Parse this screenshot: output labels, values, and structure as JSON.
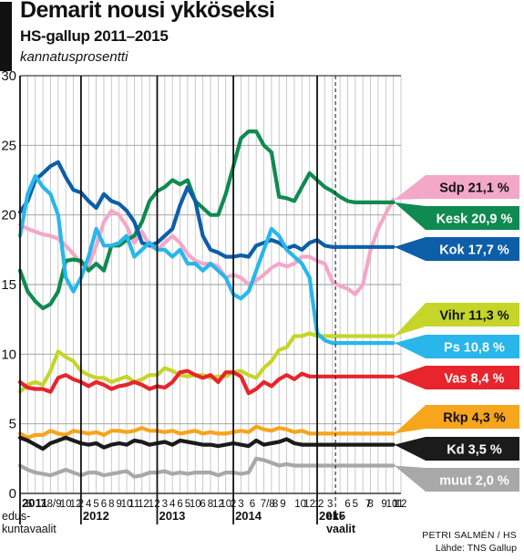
{
  "header": {
    "title": "Demarit nousi ykköseksi",
    "subtitle": "HS-gallup 2011–2015",
    "unit": "kannatusprosentti"
  },
  "footer": {
    "credit_author": "PETRI SALMÉN / HS",
    "credit_source": "Lähde: TNS Gallup"
  },
  "chart_data": {
    "type": "line",
    "title": "Demarit nousi ykköseksi",
    "subtitle": "HS-gallup 2011–2015",
    "ylabel": "kannatusprosentti",
    "ylim": [
      0,
      30
    ],
    "yticks": [
      0,
      5,
      10,
      15,
      20,
      25,
      30
    ],
    "grid": true,
    "legend_placement": "right",
    "xlim": [
      0,
      50
    ],
    "x": [
      0,
      1,
      2,
      3,
      4,
      5,
      6,
      7,
      8,
      9,
      10,
      11,
      12,
      13,
      14,
      15,
      16,
      17,
      18,
      19,
      20,
      21,
      22,
      23,
      24,
      25,
      26,
      27,
      28,
      29,
      30,
      31,
      32,
      33,
      34,
      35,
      36,
      37,
      38,
      39,
      40,
      41,
      42,
      43,
      44,
      45,
      46,
      47,
      48,
      49
    ],
    "year_marks": [
      {
        "x": 0,
        "label": "2011"
      },
      {
        "x": 8,
        "label": "2012"
      },
      {
        "x": 18,
        "label": "2013"
      },
      {
        "x": 28,
        "label": "2014"
      },
      {
        "x": 39,
        "label": "2015"
      }
    ],
    "event_marks": [
      {
        "x": 0,
        "label": "edus-\nkuntavaalit"
      },
      {
        "x": 41.4,
        "label": "ek-\nvaalit"
      }
    ],
    "x_tick_labels": [
      {
        "x": 1.2,
        "label": "6"
      },
      {
        "x": 3,
        "label": "7"
      },
      {
        "x": 4.5,
        "label": "8/9"
      },
      {
        "x": 6,
        "label": "10"
      },
      {
        "x": 7.3,
        "label": "12"
      },
      {
        "x": 8,
        "label": "2"
      },
      {
        "x": 9,
        "label": "4"
      },
      {
        "x": 10,
        "label": "5"
      },
      {
        "x": 11,
        "label": "6"
      },
      {
        "x": 12,
        "label": "8"
      },
      {
        "x": 13,
        "label": "9"
      },
      {
        "x": 14,
        "label": "10"
      },
      {
        "x": 15,
        "label": "11"
      },
      {
        "x": 16.2,
        "label": "12"
      },
      {
        "x": 17.2,
        "label": "1"
      },
      {
        "x": 18,
        "label": "2"
      },
      {
        "x": 19,
        "label": "3"
      },
      {
        "x": 20,
        "label": "4"
      },
      {
        "x": 21,
        "label": "6"
      },
      {
        "x": 22,
        "label": "5"
      },
      {
        "x": 23,
        "label": "10"
      },
      {
        "x": 24,
        "label": "6"
      },
      {
        "x": 25,
        "label": "8"
      },
      {
        "x": 26,
        "label": "12"
      },
      {
        "x": 27,
        "label": "10"
      },
      {
        "x": 28,
        "label": "2"
      },
      {
        "x": 29,
        "label": "3"
      },
      {
        "x": 30.5,
        "label": "6"
      },
      {
        "x": 32.5,
        "label": "7/8"
      },
      {
        "x": 33.5,
        "label": "8"
      },
      {
        "x": 34.5,
        "label": "9"
      },
      {
        "x": 36.8,
        "label": "10"
      },
      {
        "x": 38,
        "label": "12"
      },
      {
        "x": 39,
        "label": "1"
      },
      {
        "x": 39.5,
        "label": "2"
      },
      {
        "x": 40.7,
        "label": "3"
      },
      {
        "x": 43,
        "label": "6"
      },
      {
        "x": 44,
        "label": "5"
      },
      {
        "x": 45.7,
        "label": "7"
      },
      {
        "x": 46,
        "label": "8"
      },
      {
        "x": 47.8,
        "label": "9"
      },
      {
        "x": 48.8,
        "label": "10"
      },
      {
        "x": 49.6,
        "label": "11"
      },
      {
        "x": 50,
        "label": "12"
      }
    ],
    "series": [
      {
        "name": "Sdp",
        "color": "#f3a8c8",
        "values": [
          19.3,
          19.0,
          18.8,
          18.6,
          18.5,
          18.3,
          17.8,
          17.2,
          16.5,
          16.3,
          17.8,
          19.5,
          20.3,
          20.0,
          19.2,
          18.0,
          18.8,
          17.8,
          17.5,
          18.0,
          18.5,
          18.0,
          17.2,
          16.7,
          16.5,
          16.5,
          16.3,
          15.5,
          15.7,
          15.5,
          15.0,
          15.3,
          15.7,
          16.2,
          16.5,
          16.3,
          16.5,
          17.0,
          17.0,
          16.7,
          16.5,
          15.2,
          14.9,
          14.7,
          14.3,
          15.0,
          17.5,
          19.0,
          20.1,
          21.1
        ]
      },
      {
        "name": "Kesk",
        "color": "#0f8a50",
        "values": [
          16.0,
          14.5,
          13.8,
          13.3,
          13.6,
          14.5,
          16.7,
          16.8,
          16.7,
          16.0,
          16.5,
          16.0,
          17.8,
          17.8,
          18.2,
          18.5,
          19.5,
          21.0,
          21.7,
          22.0,
          22.5,
          22.2,
          22.5,
          21.0,
          20.5,
          20.0,
          20.0,
          21.5,
          23.5,
          25.5,
          26.0,
          26.0,
          25.0,
          24.5,
          21.3,
          21.2,
          21.0,
          22.0,
          23.0,
          22.5,
          22.0,
          21.7,
          21.3,
          21.0,
          20.9,
          20.9,
          20.9,
          20.9,
          20.9,
          20.9
        ]
      },
      {
        "name": "Kok",
        "color": "#0d5ea8",
        "values": [
          20.2,
          21.0,
          22.5,
          23.0,
          23.5,
          23.8,
          22.7,
          21.8,
          21.6,
          21.0,
          20.5,
          21.5,
          21.0,
          20.8,
          20.3,
          19.5,
          18.0,
          17.8,
          18.0,
          18.5,
          19.0,
          20.7,
          22.0,
          21.0,
          18.5,
          17.5,
          17.3,
          17.0,
          17.0,
          17.1,
          17.0,
          17.8,
          18.0,
          18.2,
          18.0,
          17.6,
          17.8,
          17.5,
          18.0,
          18.2,
          17.8,
          17.7,
          17.7,
          17.7,
          17.7,
          17.7,
          17.7,
          17.7,
          17.7,
          17.7
        ]
      },
      {
        "name": "Vihr",
        "color": "#c5d52a",
        "values": [
          7.3,
          7.8,
          8.0,
          7.8,
          8.8,
          10.2,
          9.8,
          9.5,
          8.8,
          8.5,
          8.3,
          8.3,
          8.0,
          8.2,
          8.4,
          8.0,
          8.2,
          8.5,
          8.5,
          9.0,
          8.8,
          8.5,
          8.4,
          8.5,
          8.5,
          8.3,
          8.4,
          8.4,
          8.7,
          8.8,
          8.5,
          8.3,
          9.0,
          9.5,
          10.3,
          10.5,
          11.3,
          11.3,
          11.5,
          11.3,
          11.3,
          11.3,
          11.3,
          11.3,
          11.3,
          11.3,
          11.3,
          11.3,
          11.3,
          11.3
        ]
      },
      {
        "name": "Ps",
        "color": "#29b6ea",
        "values": [
          18.5,
          21.5,
          22.8,
          22.0,
          21.5,
          20.0,
          15.5,
          14.5,
          15.5,
          17.0,
          19.0,
          17.8,
          17.8,
          18.0,
          18.5,
          17.0,
          17.5,
          18.0,
          17.5,
          17.5,
          17.0,
          17.5,
          16.5,
          16.5,
          16.0,
          16.5,
          16.0,
          15.5,
          14.3,
          14.0,
          14.5,
          16.0,
          17.5,
          19.0,
          18.5,
          17.5,
          17.0,
          16.5,
          15.5,
          11.5,
          11.0,
          10.8,
          10.8,
          10.8,
          10.8,
          10.8,
          10.8,
          10.8,
          10.8,
          10.8
        ]
      },
      {
        "name": "Vas",
        "color": "#e8242c",
        "values": [
          8.0,
          7.6,
          7.5,
          7.5,
          7.3,
          8.3,
          8.5,
          8.2,
          8.0,
          7.7,
          8.0,
          7.8,
          7.5,
          7.7,
          7.8,
          8.0,
          7.8,
          7.5,
          7.7,
          7.6,
          8.0,
          8.7,
          8.8,
          8.5,
          8.3,
          8.5,
          8.0,
          8.7,
          8.7,
          8.4,
          7.2,
          7.5,
          8.0,
          7.7,
          8.2,
          8.5,
          8.2,
          8.6,
          8.4,
          8.4,
          8.4,
          8.4,
          8.4,
          8.4,
          8.4,
          8.4,
          8.4,
          8.4,
          8.4,
          8.4
        ]
      },
      {
        "name": "Rkp",
        "color": "#f6a51c",
        "values": [
          4.3,
          4.0,
          4.2,
          4.2,
          4.5,
          4.3,
          4.2,
          4.5,
          4.4,
          4.3,
          4.4,
          4.2,
          4.5,
          4.5,
          4.4,
          4.5,
          4.7,
          4.5,
          4.5,
          4.4,
          4.5,
          4.3,
          4.4,
          4.5,
          4.3,
          4.4,
          4.3,
          4.3,
          4.4,
          4.5,
          4.4,
          4.8,
          4.6,
          4.5,
          4.7,
          4.6,
          4.4,
          4.5,
          4.3,
          4.3,
          4.3,
          4.3,
          4.3,
          4.3,
          4.3,
          4.3,
          4.3,
          4.3,
          4.3,
          4.3
        ]
      },
      {
        "name": "Kd",
        "color": "#1b1b1b",
        "values": [
          4.0,
          3.8,
          3.5,
          3.2,
          3.6,
          3.8,
          4.0,
          3.8,
          3.6,
          3.5,
          3.6,
          3.3,
          3.5,
          3.6,
          3.5,
          3.8,
          3.7,
          3.5,
          3.6,
          3.7,
          3.5,
          3.8,
          3.7,
          3.6,
          3.5,
          3.5,
          3.4,
          3.5,
          3.6,
          3.5,
          3.4,
          3.8,
          3.5,
          3.6,
          3.7,
          3.9,
          3.6,
          3.5,
          3.5,
          3.5,
          3.5,
          3.5,
          3.5,
          3.5,
          3.5,
          3.5,
          3.5,
          3.5,
          3.5,
          3.5
        ]
      },
      {
        "name": "muut",
        "color": "#a8a8a8",
        "values": [
          2.0,
          1.7,
          1.5,
          1.4,
          1.3,
          1.5,
          1.7,
          1.5,
          1.3,
          1.5,
          1.5,
          1.3,
          1.4,
          1.5,
          1.6,
          1.2,
          1.3,
          1.5,
          1.5,
          1.6,
          1.4,
          1.5,
          1.4,
          1.5,
          1.5,
          1.5,
          1.3,
          1.5,
          1.5,
          1.4,
          1.5,
          2.5,
          2.4,
          2.2,
          2.0,
          2.1,
          2.0,
          2.0,
          2.0,
          2.0,
          2.0,
          2.0,
          2.0,
          2.0,
          2.0,
          2.0,
          2.0,
          2.0,
          2.0,
          2.0
        ]
      }
    ],
    "end_labels": [
      {
        "series": "Sdp",
        "text": "Sdp 21,1 %",
        "bg": "#f3a8c8",
        "fg": "#111111"
      },
      {
        "series": "Kesk",
        "text": "Kesk 20,9 %",
        "bg": "#0f8a50",
        "fg": "#ffffff"
      },
      {
        "series": "Kok",
        "text": "Kok 17,7 %",
        "bg": "#0d5ea8",
        "fg": "#ffffff"
      },
      {
        "series": "Vihr",
        "text": "Vihr 11,3 %",
        "bg": "#c5d52a",
        "fg": "#111111"
      },
      {
        "series": "Ps",
        "text": "Ps 10,8 %",
        "bg": "#29b6ea",
        "fg": "#ffffff"
      },
      {
        "series": "Vas",
        "text": "Vas 8,4 %",
        "bg": "#e8242c",
        "fg": "#ffffff"
      },
      {
        "series": "Rkp",
        "text": "Rkp 4,3 %",
        "bg": "#f6a51c",
        "fg": "#111111"
      },
      {
        "series": "Kd",
        "text": "Kd 3,5 %",
        "bg": "#1b1b1b",
        "fg": "#ffffff"
      },
      {
        "series": "muut",
        "text": "muut 2,0 %",
        "bg": "#a8a8a8",
        "fg": "#ffffff"
      }
    ]
  }
}
